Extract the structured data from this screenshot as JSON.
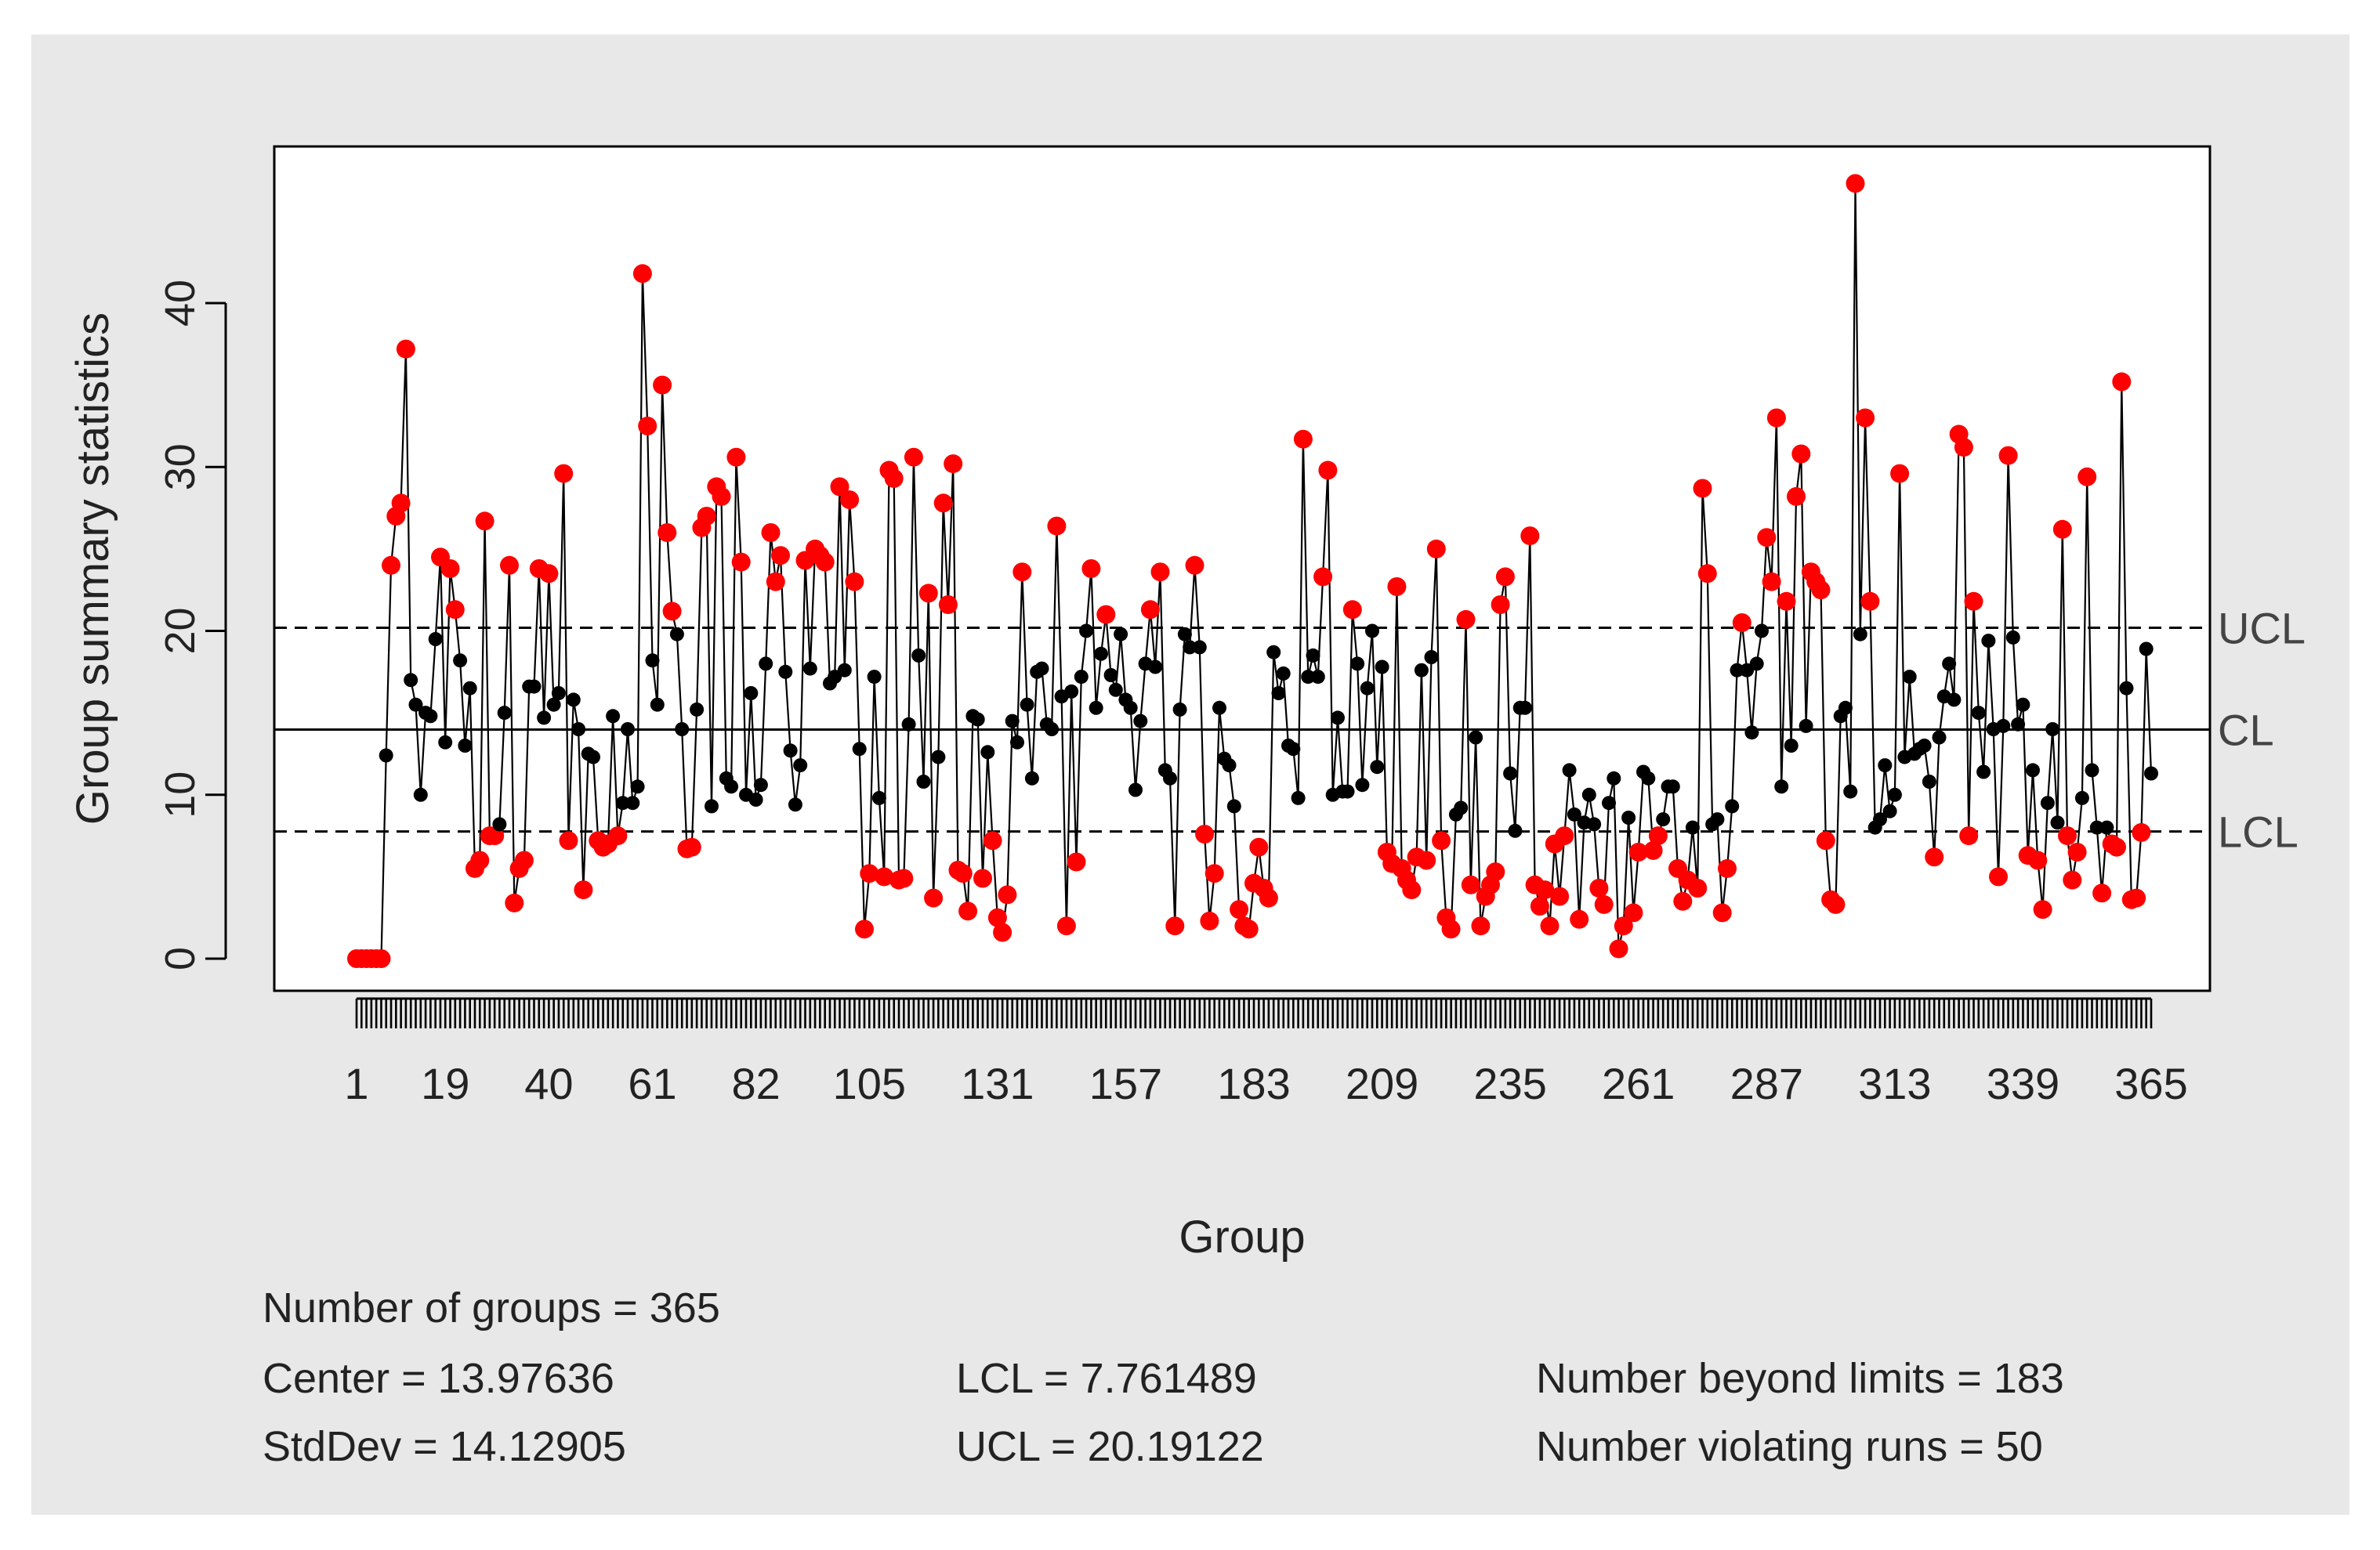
{
  "chart_data": {
    "type": "line",
    "title": "",
    "xlabel": "Group",
    "ylabel": "Group summary statistics",
    "xlim": [
      1,
      365
    ],
    "ylim": [
      -2,
      49
    ],
    "y_ticks": [
      0,
      10,
      20,
      30,
      40
    ],
    "x_tick_labels": [
      1,
      19,
      40,
      61,
      82,
      105,
      131,
      157,
      183,
      209,
      235,
      261,
      287,
      313,
      339,
      365
    ],
    "limits": {
      "CL": 13.97636,
      "UCL": 20.19122,
      "LCL": 7.761489
    },
    "limit_labels": [
      "UCL",
      "CL",
      "LCL"
    ],
    "colors": {
      "in_control": "#000000",
      "out_of_control": "#ff0000",
      "panel_bg": "#e8e8e8"
    },
    "anchors": [
      [
        1,
        0
      ],
      [
        2,
        0
      ],
      [
        3,
        0
      ],
      [
        4,
        0
      ],
      [
        5,
        0
      ],
      [
        6,
        0
      ],
      [
        7,
        12.4
      ],
      [
        8,
        24
      ],
      [
        9,
        27
      ],
      [
        10,
        27.8
      ],
      [
        11,
        37.2
      ],
      [
        12,
        17
      ],
      [
        13,
        15.5
      ],
      [
        14,
        10
      ],
      [
        15,
        15
      ],
      [
        16,
        14.8
      ],
      [
        17,
        19.5
      ],
      [
        18,
        24.5
      ],
      [
        19,
        13.2
      ],
      [
        20,
        23.8
      ],
      [
        21,
        21.3
      ],
      [
        22,
        18.2
      ],
      [
        23,
        13
      ],
      [
        24,
        16.5
      ],
      [
        25,
        5.5
      ],
      [
        26,
        6
      ],
      [
        27,
        26.7
      ],
      [
        28,
        7.5
      ],
      [
        29,
        7.5
      ],
      [
        30,
        8.2
      ],
      [
        31,
        15
      ],
      [
        32,
        24
      ],
      [
        33,
        3.4
      ],
      [
        34,
        5.5
      ],
      [
        35,
        6
      ],
      [
        36,
        16.6
      ],
      [
        37,
        16.6
      ],
      [
        38,
        23.8
      ],
      [
        39,
        14.7
      ],
      [
        40,
        23.5
      ],
      [
        41,
        15.5
      ],
      [
        42,
        16.2
      ],
      [
        43,
        29.6
      ],
      [
        44,
        7.2
      ],
      [
        45,
        15.8
      ],
      [
        46,
        14
      ],
      [
        47,
        4.2
      ],
      [
        48,
        12.5
      ],
      [
        49,
        12.3
      ],
      [
        50,
        7.2
      ],
      [
        51,
        6.8
      ],
      [
        52,
        7
      ],
      [
        53,
        14.8
      ],
      [
        54,
        7.5
      ],
      [
        55,
        9.5
      ],
      [
        56,
        14
      ],
      [
        57,
        9.5
      ],
      [
        58,
        10.5
      ],
      [
        59,
        41.8
      ],
      [
        60,
        32.5
      ],
      [
        61,
        18.2
      ],
      [
        62,
        15.5
      ],
      [
        63,
        35
      ],
      [
        64,
        26
      ],
      [
        65,
        21.2
      ],
      [
        66,
        19.8
      ],
      [
        67,
        14
      ],
      [
        68,
        6.7
      ],
      [
        69,
        6.8
      ],
      [
        70,
        15.2
      ],
      [
        71,
        26.3
      ],
      [
        72,
        27
      ],
      [
        73,
        9.3
      ],
      [
        74,
        28.8
      ],
      [
        75,
        28.2
      ],
      [
        76,
        11
      ],
      [
        77,
        10.5
      ],
      [
        78,
        30.6
      ],
      [
        79,
        24.2
      ],
      [
        80,
        10
      ],
      [
        81,
        16.2
      ],
      [
        82,
        9.7
      ],
      [
        83,
        10.6
      ],
      [
        84,
        18
      ],
      [
        85,
        26
      ],
      [
        86,
        23
      ],
      [
        87,
        24.6
      ],
      [
        88,
        17.5
      ],
      [
        89,
        12.7
      ],
      [
        90,
        9.4
      ],
      [
        91,
        11.8
      ],
      [
        92,
        24.3
      ],
      [
        93,
        17.7
      ],
      [
        94,
        25
      ],
      [
        95,
        24.6
      ],
      [
        96,
        24.2
      ],
      [
        97,
        16.8
      ],
      [
        98,
        17.2
      ],
      [
        99,
        28.8
      ],
      [
        100,
        17.6
      ],
      [
        101,
        28
      ],
      [
        102,
        23
      ],
      [
        103,
        12.8
      ],
      [
        104,
        1.8
      ],
      [
        105,
        5.2
      ],
      [
        106,
        17.2
      ],
      [
        107,
        9.8
      ],
      [
        108,
        5
      ],
      [
        109,
        29.8
      ],
      [
        110,
        29.3
      ],
      [
        111,
        4.8
      ],
      [
        112,
        4.9
      ],
      [
        113,
        14.3
      ],
      [
        114,
        30.6
      ],
      [
        115,
        18.5
      ],
      [
        116,
        10.8
      ],
      [
        117,
        22.3
      ],
      [
        118,
        3.7
      ],
      [
        119,
        12.3
      ],
      [
        120,
        27.8
      ],
      [
        121,
        21.6
      ],
      [
        122,
        30.2
      ],
      [
        123,
        5.4
      ],
      [
        124,
        5.2
      ],
      [
        125,
        2.9
      ],
      [
        126,
        14.8
      ],
      [
        127,
        14.6
      ],
      [
        128,
        4.9
      ],
      [
        129,
        12.6
      ],
      [
        130,
        7.2
      ],
      [
        131,
        2.5
      ],
      [
        132,
        1.6
      ],
      [
        133,
        3.9
      ],
      [
        134,
        14.5
      ],
      [
        135,
        13.2
      ],
      [
        136,
        23.6
      ],
      [
        137,
        15.5
      ],
      [
        138,
        11
      ],
      [
        139,
        17.5
      ],
      [
        140,
        17.7
      ],
      [
        141,
        14.3
      ],
      [
        142,
        14
      ],
      [
        143,
        26.4
      ],
      [
        144,
        16
      ],
      [
        145,
        2
      ],
      [
        146,
        16.3
      ],
      [
        147,
        5.9
      ],
      [
        148,
        17.2
      ],
      [
        149,
        20
      ],
      [
        150,
        23.8
      ],
      [
        151,
        15.3
      ],
      [
        152,
        18.6
      ],
      [
        153,
        21
      ],
      [
        154,
        17.3
      ],
      [
        155,
        16.4
      ],
      [
        156,
        19.8
      ],
      [
        157,
        15.8
      ],
      [
        158,
        15.3
      ],
      [
        159,
        10.3
      ],
      [
        160,
        14.5
      ],
      [
        161,
        18
      ],
      [
        162,
        21.3
      ],
      [
        163,
        17.8
      ],
      [
        164,
        23.6
      ],
      [
        165,
        11.5
      ],
      [
        166,
        11
      ],
      [
        167,
        2
      ],
      [
        168,
        15.2
      ],
      [
        169,
        19.8
      ],
      [
        170,
        19
      ],
      [
        171,
        24
      ],
      [
        172,
        19
      ],
      [
        173,
        7.6
      ],
      [
        174,
        2.3
      ],
      [
        175,
        5.2
      ],
      [
        176,
        15.3
      ],
      [
        177,
        12.2
      ],
      [
        178,
        11.8
      ],
      [
        179,
        9.3
      ],
      [
        180,
        3
      ],
      [
        181,
        2
      ],
      [
        182,
        1.8
      ],
      [
        183,
        4.6
      ],
      [
        184,
        6.8
      ],
      [
        185,
        4.3
      ],
      [
        186,
        3.7
      ],
      [
        187,
        18.7
      ],
      [
        188,
        16.2
      ],
      [
        189,
        17.4
      ],
      [
        190,
        13
      ],
      [
        191,
        12.8
      ],
      [
        192,
        9.8
      ],
      [
        193,
        31.7
      ],
      [
        194,
        17.2
      ],
      [
        195,
        18.5
      ],
      [
        196,
        17.2
      ],
      [
        197,
        23.3
      ],
      [
        198,
        29.8
      ],
      [
        199,
        10
      ],
      [
        200,
        14.7
      ],
      [
        201,
        10.2
      ],
      [
        202,
        10.2
      ],
      [
        203,
        21.3
      ],
      [
        204,
        18
      ],
      [
        205,
        10.6
      ],
      [
        206,
        16.5
      ],
      [
        207,
        20
      ],
      [
        208,
        11.7
      ],
      [
        209,
        17.8
      ],
      [
        210,
        6.5
      ],
      [
        211,
        5.8
      ],
      [
        212,
        22.7
      ],
      [
        213,
        5.5
      ],
      [
        214,
        4.8
      ],
      [
        215,
        4.2
      ],
      [
        216,
        6.2
      ],
      [
        217,
        17.6
      ],
      [
        218,
        6
      ],
      [
        219,
        18.4
      ],
      [
        220,
        25
      ],
      [
        221,
        7.2
      ],
      [
        222,
        2.5
      ],
      [
        223,
        1.8
      ],
      [
        224,
        8.8
      ],
      [
        225,
        9.2
      ],
      [
        226,
        20.7
      ],
      [
        227,
        4.5
      ],
      [
        228,
        13.5
      ],
      [
        229,
        2
      ],
      [
        230,
        3.8
      ],
      [
        231,
        4.5
      ],
      [
        232,
        5.3
      ],
      [
        233,
        21.6
      ],
      [
        234,
        23.3
      ],
      [
        235,
        11.3
      ],
      [
        236,
        7.8
      ],
      [
        237,
        15.3
      ],
      [
        238,
        15.3
      ],
      [
        239,
        25.8
      ],
      [
        240,
        4.5
      ],
      [
        241,
        3.2
      ],
      [
        242,
        4.2
      ],
      [
        243,
        2
      ],
      [
        244,
        7
      ],
      [
        245,
        3.8
      ],
      [
        246,
        7.5
      ],
      [
        247,
        11.5
      ],
      [
        248,
        8.8
      ],
      [
        249,
        2.4
      ],
      [
        250,
        8.3
      ],
      [
        251,
        10
      ],
      [
        252,
        8.2
      ],
      [
        253,
        4.3
      ],
      [
        254,
        3.3
      ],
      [
        255,
        9.5
      ],
      [
        256,
        11
      ],
      [
        257,
        0.6
      ],
      [
        258,
        2
      ],
      [
        259,
        8.6
      ],
      [
        260,
        2.8
      ],
      [
        261,
        6.5
      ],
      [
        262,
        11.4
      ],
      [
        263,
        11
      ],
      [
        264,
        6.6
      ],
      [
        265,
        7.5
      ],
      [
        266,
        8.5
      ],
      [
        267,
        10.5
      ],
      [
        268,
        10.5
      ],
      [
        269,
        5.5
      ],
      [
        270,
        3.5
      ],
      [
        271,
        4.8
      ],
      [
        272,
        8
      ],
      [
        273,
        4.3
      ],
      [
        274,
        28.7
      ],
      [
        275,
        23.5
      ],
      [
        276,
        8.2
      ],
      [
        277,
        8.5
      ],
      [
        278,
        2.8
      ],
      [
        279,
        5.5
      ],
      [
        280,
        9.3
      ],
      [
        281,
        17.6
      ],
      [
        282,
        20.5
      ],
      [
        283,
        17.6
      ],
      [
        284,
        13.8
      ],
      [
        285,
        18
      ],
      [
        286,
        20
      ],
      [
        287,
        25.7
      ],
      [
        288,
        23
      ],
      [
        289,
        33
      ],
      [
        290,
        10.5
      ],
      [
        291,
        21.8
      ],
      [
        292,
        13
      ],
      [
        293,
        28.2
      ],
      [
        294,
        30.8
      ],
      [
        295,
        14.2
      ],
      [
        296,
        23.6
      ],
      [
        297,
        23
      ],
      [
        298,
        22.5
      ],
      [
        299,
        7.2
      ],
      [
        300,
        3.6
      ],
      [
        301,
        3.3
      ],
      [
        302,
        14.8
      ],
      [
        303,
        15.3
      ],
      [
        304,
        10.2
      ],
      [
        305,
        47.3
      ],
      [
        306,
        19.8
      ],
      [
        307,
        33
      ],
      [
        308,
        21.8
      ],
      [
        309,
        8
      ],
      [
        310,
        8.5
      ],
      [
        311,
        11.8
      ],
      [
        312,
        9
      ],
      [
        313,
        10
      ],
      [
        314,
        29.6
      ],
      [
        315,
        12.3
      ],
      [
        316,
        17.2
      ],
      [
        317,
        12.5
      ],
      [
        318,
        12.8
      ],
      [
        319,
        13
      ],
      [
        320,
        10.8
      ],
      [
        321,
        6.2
      ],
      [
        322,
        13.5
      ],
      [
        323,
        16
      ],
      [
        324,
        18
      ],
      [
        325,
        15.8
      ],
      [
        326,
        32
      ],
      [
        327,
        31.2
      ],
      [
        328,
        7.5
      ],
      [
        329,
        21.8
      ],
      [
        330,
        15
      ],
      [
        331,
        11.4
      ],
      [
        332,
        19.4
      ],
      [
        333,
        14
      ],
      [
        334,
        5
      ],
      [
        335,
        14.2
      ],
      [
        336,
        30.7
      ],
      [
        337,
        19.6
      ],
      [
        338,
        14.3
      ],
      [
        339,
        15.5
      ],
      [
        340,
        6.3
      ],
      [
        341,
        11.5
      ],
      [
        342,
        6
      ],
      [
        343,
        3
      ],
      [
        344,
        9.5
      ],
      [
        345,
        14
      ],
      [
        346,
        8.3
      ],
      [
        347,
        26.2
      ],
      [
        348,
        7.5
      ],
      [
        349,
        4.8
      ],
      [
        350,
        6.5
      ],
      [
        351,
        9.8
      ],
      [
        352,
        29.4
      ],
      [
        353,
        11.5
      ],
      [
        354,
        8
      ],
      [
        355,
        4
      ],
      [
        356,
        8
      ],
      [
        357,
        7
      ],
      [
        358,
        6.8
      ],
      [
        359,
        35.2
      ],
      [
        360,
        16.5
      ],
      [
        361,
        3.6
      ],
      [
        362,
        3.7
      ],
      [
        363,
        7.7
      ],
      [
        364,
        18.9
      ],
      [
        365,
        11.3
      ]
    ],
    "anchor_note": "Each pair is [group, statistic]; groups outside the limits are plotted in red."
  },
  "summary": {
    "n_groups": "Number of groups = 365",
    "center": "Center = 13.97636",
    "stddev": "StdDev = 14.12905",
    "lcl": "LCL = 7.761489",
    "ucl": "UCL = 20.19122",
    "beyond_limits": "Number beyond limits = 183",
    "violating_runs": "Number violating runs = 50"
  }
}
